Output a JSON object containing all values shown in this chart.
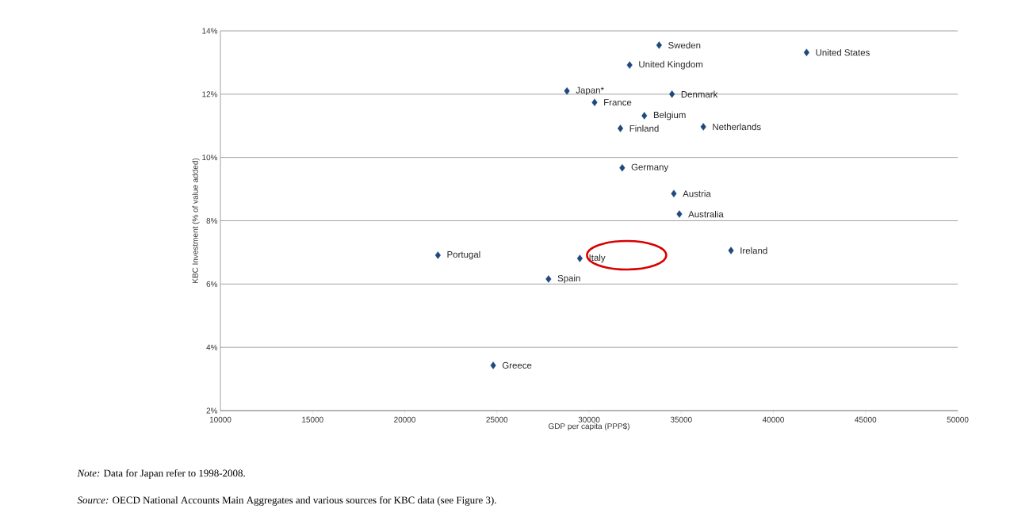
{
  "chart_data": {
    "type": "scatter",
    "xlabel": "GDP per capita (PPP$)",
    "ylabel": "KBC Investment (% of value added)",
    "x": [
      33800,
      41800,
      32200,
      28800,
      30300,
      34500,
      33000,
      31700,
      36200,
      31800,
      34600,
      34900,
      21800,
      29500,
      27800,
      37700,
      24800
    ],
    "values": [
      13.55,
      13.32,
      12.92,
      12.1,
      11.74,
      12.0,
      11.32,
      10.92,
      10.97,
      9.67,
      8.86,
      8.21,
      6.91,
      6.81,
      6.16,
      7.06,
      3.43
    ],
    "color": "#1f497d",
    "marker": "diamond",
    "grid": "y",
    "xlim": [
      10000,
      50000
    ],
    "xticks": [
      10000,
      15000,
      20000,
      25000,
      30000,
      35000,
      40000,
      45000,
      50000
    ],
    "ylim": [
      2,
      14
    ],
    "yticks": [
      {
        "value": 2,
        "label": "2%"
      },
      {
        "value": 4,
        "label": "4%"
      },
      {
        "value": 6,
        "label": "6%"
      },
      {
        "value": 8,
        "label": "8%"
      },
      {
        "value": 10,
        "label": "10%"
      },
      {
        "value": 12,
        "label": "12%"
      },
      {
        "value": 14,
        "label": "14%"
      }
    ],
    "annotations": [
      {
        "text": "Sweden",
        "x": 33800,
        "y": 13.55
      },
      {
        "text": "United States",
        "x": 41800,
        "y": 13.32
      },
      {
        "text": "United Kingdom",
        "x": 32200,
        "y": 12.92
      },
      {
        "text": "Japan*",
        "x": 28800,
        "y": 12.1
      },
      {
        "text": "France",
        "x": 30300,
        "y": 11.74
      },
      {
        "text": "Denmark",
        "x": 34500,
        "y": 12.0
      },
      {
        "text": "Belgium",
        "x": 33000,
        "y": 11.32
      },
      {
        "text": "Finland",
        "x": 31700,
        "y": 10.92
      },
      {
        "text": "Netherlands",
        "x": 36200,
        "y": 10.97
      },
      {
        "text": "Germany",
        "x": 31800,
        "y": 9.67
      },
      {
        "text": "Austria",
        "x": 34600,
        "y": 8.86
      },
      {
        "text": "Australia",
        "x": 34900,
        "y": 8.21
      },
      {
        "text": "Portugal",
        "x": 21800,
        "y": 6.91
      },
      {
        "text": "Italy",
        "x": 29500,
        "y": 6.81
      },
      {
        "text": "Spain",
        "x": 27800,
        "y": 6.16
      },
      {
        "text": "Ireland",
        "x": 37700,
        "y": 7.06
      },
      {
        "text": "Greece",
        "x": 24800,
        "y": 3.43
      },
      "*Note:* Data for Japan refer to 1998-2008.",
      "*Source:* OECD National Accounts Main Aggregates and various sources for KBC data (see Figure 3)."
    ]
  }
}
